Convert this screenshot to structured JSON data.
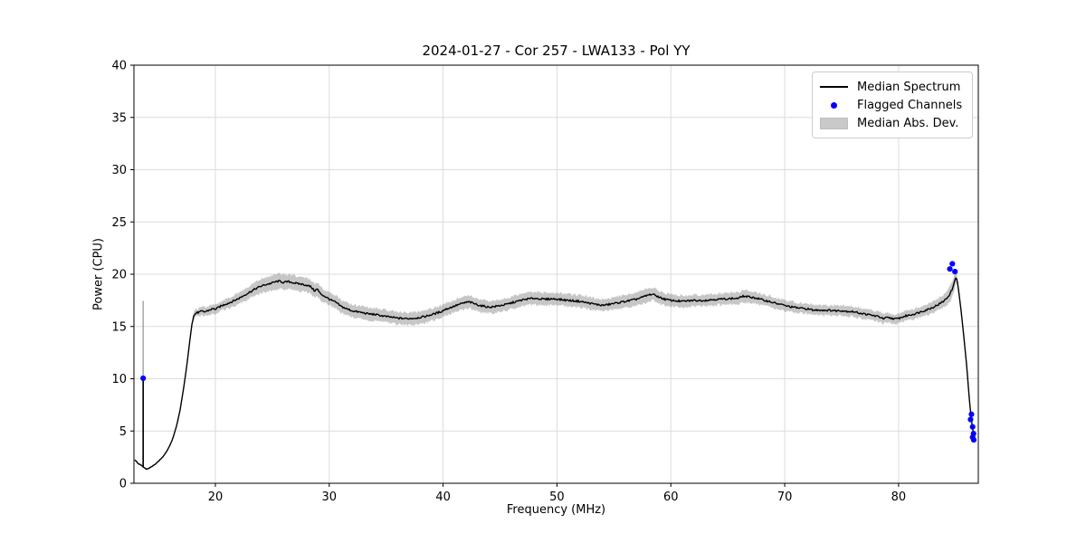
{
  "chart_data": {
    "type": "line",
    "title": "2024-01-27 - Cor 257 - LWA133 - Pol YY",
    "xlabel": "Frequency (MHz)",
    "ylabel": "Power (CPU)",
    "xlim": [
      12.85,
      87.0
    ],
    "ylim": [
      0,
      40
    ],
    "xticks": [
      20,
      30,
      40,
      50,
      60,
      70,
      80
    ],
    "yticks": [
      0,
      5,
      10,
      15,
      20,
      25,
      30,
      35,
      40
    ],
    "grid": true,
    "legend": {
      "position": "upper right",
      "entries": [
        {
          "label": "Median Spectrum",
          "type": "line",
          "color": "#000000"
        },
        {
          "label": "Flagged Channels",
          "type": "dot",
          "color": "#0000ff"
        },
        {
          "label": "Median Abs. Dev.",
          "type": "patch",
          "color": "#c9c9c9"
        }
      ]
    },
    "colors": {
      "line": "#000000",
      "flagged": "#0000ff",
      "band": "rgba(128,128,128,0.45)",
      "grid": "#dcdcdc",
      "spine": "#000000"
    },
    "rfi_spike": {
      "x": 13.66,
      "base": 1.5,
      "line_top": 10.0,
      "band_top": 17.45
    },
    "median_points": [
      [
        12.9,
        2.3,
        0.1
      ],
      [
        13.2,
        1.9,
        0.09
      ],
      [
        13.45,
        1.75,
        0.08
      ],
      [
        13.6,
        1.65,
        0.08
      ],
      [
        13.75,
        1.5,
        0.08
      ],
      [
        13.95,
        1.35,
        0.08
      ],
      [
        14.2,
        1.45,
        0.08
      ],
      [
        14.5,
        1.65,
        0.08
      ],
      [
        14.8,
        1.9,
        0.08
      ],
      [
        15.1,
        2.2,
        0.08
      ],
      [
        15.4,
        2.55,
        0.08
      ],
      [
        15.7,
        3.0,
        0.09
      ],
      [
        16.0,
        3.6,
        0.09
      ],
      [
        16.3,
        4.4,
        0.1
      ],
      [
        16.6,
        5.5,
        0.1
      ],
      [
        16.9,
        7.0,
        0.11
      ],
      [
        17.2,
        9.0,
        0.12
      ],
      [
        17.5,
        11.3,
        0.13
      ],
      [
        17.75,
        13.6,
        0.16
      ],
      [
        17.95,
        15.3,
        0.22
      ],
      [
        18.1,
        16.0,
        0.3
      ],
      [
        18.3,
        16.3,
        0.35
      ],
      [
        18.55,
        16.35,
        0.38
      ],
      [
        18.8,
        16.45,
        0.4
      ],
      [
        19.05,
        16.4,
        0.4
      ],
      [
        19.3,
        16.5,
        0.42
      ],
      [
        19.55,
        16.6,
        0.42
      ],
      [
        19.8,
        16.7,
        0.43
      ],
      [
        20.05,
        16.65,
        0.44
      ],
      [
        20.3,
        16.85,
        0.45
      ],
      [
        20.6,
        17.0,
        0.46
      ],
      [
        20.9,
        17.15,
        0.48
      ],
      [
        21.2,
        17.25,
        0.5
      ],
      [
        21.6,
        17.45,
        0.52
      ],
      [
        22.0,
        17.65,
        0.55
      ],
      [
        22.4,
        17.9,
        0.57
      ],
      [
        22.8,
        18.15,
        0.6
      ],
      [
        23.2,
        18.4,
        0.62
      ],
      [
        23.6,
        18.65,
        0.64
      ],
      [
        24.0,
        18.85,
        0.66
      ],
      [
        24.4,
        19.0,
        0.68
      ],
      [
        24.8,
        19.1,
        0.7
      ],
      [
        25.2,
        19.25,
        0.71
      ],
      [
        25.6,
        19.35,
        0.72
      ],
      [
        26.0,
        19.2,
        0.72
      ],
      [
        26.4,
        19.3,
        0.71
      ],
      [
        26.8,
        19.2,
        0.7
      ],
      [
        27.2,
        19.1,
        0.69
      ],
      [
        27.6,
        19.05,
        0.68
      ],
      [
        28.0,
        18.95,
        0.67
      ],
      [
        28.4,
        18.8,
        0.66
      ],
      [
        28.7,
        18.4,
        0.65
      ],
      [
        28.95,
        18.6,
        0.64
      ],
      [
        29.2,
        18.15,
        0.63
      ],
      [
        29.5,
        17.95,
        0.62
      ],
      [
        29.8,
        17.75,
        0.61
      ],
      [
        30.2,
        17.5,
        0.6
      ],
      [
        30.6,
        17.3,
        0.6
      ],
      [
        31.0,
        16.95,
        0.6
      ],
      [
        31.5,
        16.7,
        0.6
      ],
      [
        32.0,
        16.5,
        0.6
      ],
      [
        32.5,
        16.4,
        0.6
      ],
      [
        33.0,
        16.3,
        0.6
      ],
      [
        33.5,
        16.2,
        0.6
      ],
      [
        34.0,
        16.15,
        0.6
      ],
      [
        34.5,
        16.05,
        0.6
      ],
      [
        35.0,
        15.95,
        0.6
      ],
      [
        35.5,
        15.88,
        0.6
      ],
      [
        36.0,
        15.8,
        0.6
      ],
      [
        36.8,
        15.75,
        0.6
      ],
      [
        37.6,
        15.8,
        0.6
      ],
      [
        38.4,
        15.95,
        0.6
      ],
      [
        39.2,
        16.2,
        0.6
      ],
      [
        39.9,
        16.45,
        0.6
      ],
      [
        40.1,
        16.6,
        0.6
      ],
      [
        40.5,
        16.75,
        0.6
      ],
      [
        41.0,
        16.95,
        0.6
      ],
      [
        41.5,
        17.15,
        0.61
      ],
      [
        42.0,
        17.3,
        0.61
      ],
      [
        42.3,
        17.35,
        0.61
      ],
      [
        42.7,
        17.2,
        0.6
      ],
      [
        43.1,
        17.05,
        0.6
      ],
      [
        43.5,
        16.95,
        0.59
      ],
      [
        44.0,
        16.85,
        0.58
      ],
      [
        44.5,
        16.9,
        0.58
      ],
      [
        45.0,
        17.0,
        0.58
      ],
      [
        45.5,
        17.1,
        0.59
      ],
      [
        46.0,
        17.25,
        0.59
      ],
      [
        46.5,
        17.4,
        0.6
      ],
      [
        47.0,
        17.55,
        0.6
      ],
      [
        47.5,
        17.65,
        0.61
      ],
      [
        48.0,
        17.7,
        0.61
      ],
      [
        48.5,
        17.65,
        0.61
      ],
      [
        49.0,
        17.6,
        0.6
      ],
      [
        49.5,
        17.65,
        0.6
      ],
      [
        50.0,
        17.62,
        0.6
      ],
      [
        50.5,
        17.55,
        0.6
      ],
      [
        51.0,
        17.5,
        0.6
      ],
      [
        51.5,
        17.45,
        0.6
      ],
      [
        52.0,
        17.4,
        0.59
      ],
      [
        52.5,
        17.3,
        0.59
      ],
      [
        53.0,
        17.2,
        0.58
      ],
      [
        53.5,
        17.1,
        0.58
      ],
      [
        54.0,
        17.02,
        0.58
      ],
      [
        54.5,
        17.1,
        0.58
      ],
      [
        55.0,
        17.2,
        0.58
      ],
      [
        55.5,
        17.3,
        0.59
      ],
      [
        56.0,
        17.4,
        0.59
      ],
      [
        56.5,
        17.5,
        0.6
      ],
      [
        57.0,
        17.62,
        0.61
      ],
      [
        57.5,
        17.8,
        0.62
      ],
      [
        58.0,
        18.0,
        0.62
      ],
      [
        58.35,
        18.1,
        0.62
      ],
      [
        58.7,
        17.95,
        0.61
      ],
      [
        59.1,
        17.75,
        0.6
      ],
      [
        59.5,
        17.6,
        0.59
      ],
      [
        60.0,
        17.5,
        0.58
      ],
      [
        60.5,
        17.45,
        0.57
      ],
      [
        61.0,
        17.4,
        0.56
      ],
      [
        61.5,
        17.45,
        0.56
      ],
      [
        62.0,
        17.5,
        0.56
      ],
      [
        62.5,
        17.48,
        0.55
      ],
      [
        63.0,
        17.5,
        0.55
      ],
      [
        63.5,
        17.55,
        0.55
      ],
      [
        64.0,
        17.6,
        0.55
      ],
      [
        64.5,
        17.62,
        0.55
      ],
      [
        65.0,
        17.65,
        0.55
      ],
      [
        65.5,
        17.68,
        0.55
      ],
      [
        66.0,
        17.7,
        0.55
      ],
      [
        66.25,
        17.9,
        0.57
      ],
      [
        66.7,
        17.85,
        0.56
      ],
      [
        67.2,
        17.78,
        0.55
      ],
      [
        67.7,
        17.65,
        0.54
      ],
      [
        68.2,
        17.5,
        0.53
      ],
      [
        68.7,
        17.38,
        0.53
      ],
      [
        69.2,
        17.22,
        0.52
      ],
      [
        69.7,
        17.1,
        0.52
      ],
      [
        70.2,
        16.95,
        0.51
      ],
      [
        70.7,
        16.85,
        0.51
      ],
      [
        71.2,
        16.78,
        0.5
      ],
      [
        71.7,
        16.72,
        0.5
      ],
      [
        72.2,
        16.65,
        0.5
      ],
      [
        72.55,
        16.55,
        0.5
      ],
      [
        73.0,
        16.58,
        0.5
      ],
      [
        73.5,
        16.55,
        0.49
      ],
      [
        74.0,
        16.55,
        0.49
      ],
      [
        74.5,
        16.5,
        0.49
      ],
      [
        75.0,
        16.52,
        0.48
      ],
      [
        75.5,
        16.45,
        0.48
      ],
      [
        76.0,
        16.42,
        0.48
      ],
      [
        76.5,
        16.3,
        0.48
      ],
      [
        77.0,
        16.2,
        0.48
      ],
      [
        77.5,
        16.1,
        0.47
      ],
      [
        78.0,
        16.0,
        0.47
      ],
      [
        78.4,
        15.9,
        0.47
      ],
      [
        78.65,
        15.72,
        0.46
      ],
      [
        79.0,
        15.85,
        0.46
      ],
      [
        79.4,
        15.78,
        0.46
      ],
      [
        79.8,
        15.72,
        0.46
      ],
      [
        80.2,
        15.85,
        0.46
      ],
      [
        80.6,
        16.0,
        0.47
      ],
      [
        81.0,
        16.1,
        0.48
      ],
      [
        81.4,
        16.2,
        0.49
      ],
      [
        81.8,
        16.35,
        0.5
      ],
      [
        82.2,
        16.5,
        0.51
      ],
      [
        82.6,
        16.65,
        0.52
      ],
      [
        83.0,
        16.82,
        0.54
      ],
      [
        83.4,
        17.05,
        0.56
      ],
      [
        83.8,
        17.3,
        0.6
      ],
      [
        84.2,
        17.65,
        0.65
      ],
      [
        84.5,
        18.1,
        0.7
      ],
      [
        84.7,
        18.55,
        0.75
      ],
      [
        84.85,
        19.0,
        0.78
      ],
      [
        84.95,
        19.5,
        0.75
      ],
      [
        85.05,
        19.8,
        0.65
      ],
      [
        85.15,
        19.4,
        0.4
      ],
      [
        85.3,
        18.2,
        0.25
      ],
      [
        85.5,
        16.4,
        0.18
      ],
      [
        85.75,
        13.8,
        0.12
      ],
      [
        86.0,
        11.0,
        0.1
      ],
      [
        86.2,
        8.2,
        0.08
      ],
      [
        86.35,
        6.5,
        0.07
      ],
      [
        86.5,
        5.2,
        0.06
      ],
      [
        86.62,
        4.5,
        0.05
      ],
      [
        86.72,
        4.15,
        0.05
      ]
    ],
    "flagged_channels": [
      [
        13.66,
        10.05
      ],
      [
        84.72,
        21.0
      ],
      [
        84.5,
        20.5
      ],
      [
        84.95,
        20.25
      ],
      [
        86.4,
        6.6
      ],
      [
        86.32,
        6.1
      ],
      [
        86.5,
        5.4
      ],
      [
        86.58,
        4.75
      ],
      [
        86.5,
        4.4
      ],
      [
        86.6,
        4.15
      ]
    ]
  }
}
